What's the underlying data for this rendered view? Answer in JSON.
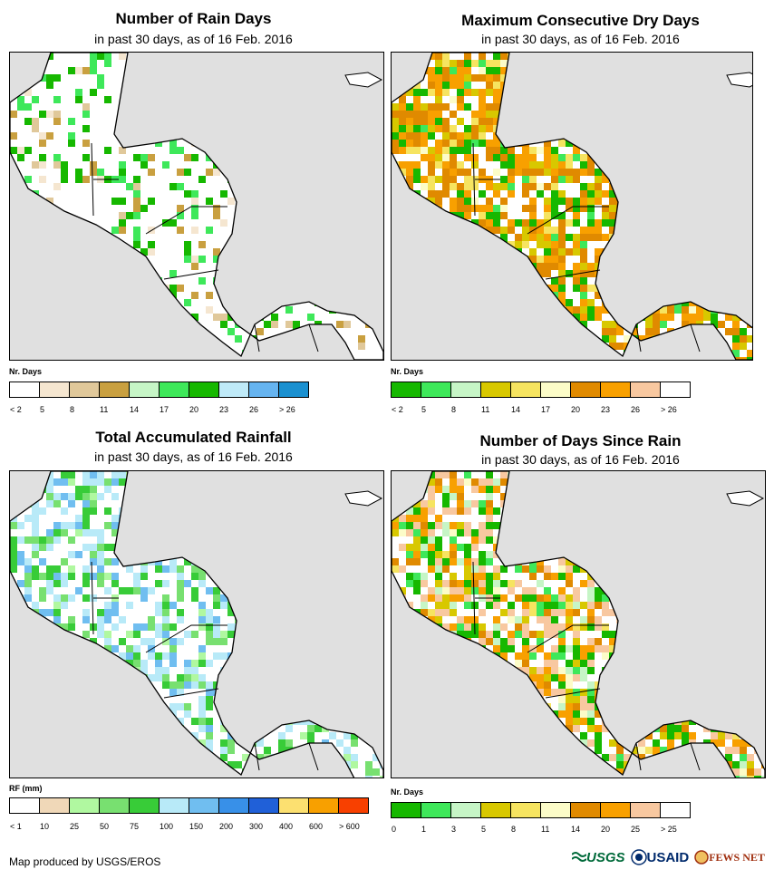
{
  "panels": [
    {
      "title": "Number of Rain Days",
      "subtitle": "in past 30 days, as of 16 Feb. 2016",
      "legend": {
        "title": "Nr. Days",
        "colors": [
          "#ffffff",
          "#f5e6d0",
          "#e0c89a",
          "#c9a040",
          "#c6f5c6",
          "#3ee85a",
          "#16b800",
          "#bfeaf8",
          "#66b4f0",
          "#1a90d0"
        ],
        "labels": [
          "< 2",
          "5",
          "8",
          "11",
          "14",
          "17",
          "20",
          "23",
          "26",
          "> 26"
        ]
      }
    },
    {
      "title": "Maximum Consecutive Dry Days",
      "subtitle": "in past 30 days, as of 16 Feb. 2016",
      "legend": {
        "title": "Nr. Days",
        "colors": [
          "#16b800",
          "#3ee85a",
          "#c6f5c6",
          "#d8c800",
          "#f6e460",
          "#fcfcc8",
          "#e08a00",
          "#f8a000",
          "#f8c8a0",
          "#ffffff"
        ],
        "labels": [
          "< 2",
          "5",
          "8",
          "11",
          "14",
          "17",
          "20",
          "23",
          "26",
          "> 26"
        ]
      }
    },
    {
      "title": "Total Accumulated Rainfall",
      "subtitle": "in past 30 days, as of 16 Feb. 2016",
      "legend": {
        "title": "RF (mm)",
        "colors": [
          "#ffffff",
          "#f0d8b8",
          "#b0f8a0",
          "#78e070",
          "#38cc38",
          "#b8eaf8",
          "#70bef0",
          "#3890e8",
          "#2060d8",
          "#fce070",
          "#f8a000",
          "#f84000"
        ],
        "labels": [
          "< 1",
          "10",
          "25",
          "50",
          "75",
          "100",
          "150",
          "200",
          "300",
          "400",
          "600",
          "> 600"
        ]
      }
    },
    {
      "title": "Number of Days Since Rain",
      "subtitle": "in past 30 days, as of 16 Feb. 2016",
      "legend": {
        "title": "Nr. Days",
        "colors": [
          "#16b800",
          "#3ee85a",
          "#c6f5c6",
          "#d8c800",
          "#f6e460",
          "#fcfcc8",
          "#e08a00",
          "#f8a000",
          "#f8c8a0",
          "#ffffff"
        ],
        "labels": [
          "0",
          "1",
          "3",
          "5",
          "8",
          "11",
          "14",
          "20",
          "25",
          "> 25"
        ]
      }
    }
  ],
  "footer": "Map produced by USGS/EROS",
  "logos": {
    "usgs": "USGS",
    "usaid": "USAID",
    "fewsnet": "FEWS NET"
  }
}
